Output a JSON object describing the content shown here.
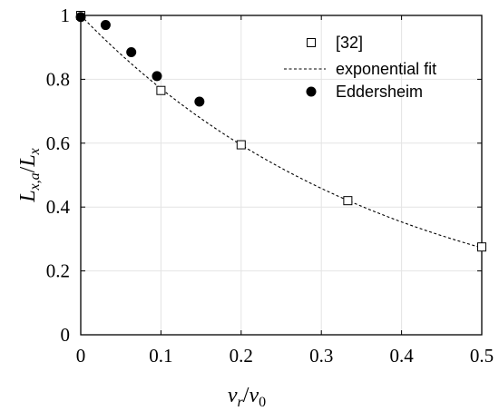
{
  "chart_data": {
    "type": "scatter",
    "xlabel": "v_r / v_0",
    "ylabel": "L_{x,a} / L_x",
    "xlim": [
      0,
      0.5
    ],
    "ylim": [
      0,
      1
    ],
    "x_ticks": [
      "0",
      "0.1",
      "0.2",
      "0.3",
      "0.4",
      "0.5"
    ],
    "y_ticks": [
      "0",
      "0.2",
      "0.4",
      "0.6",
      "0.8",
      "1"
    ],
    "grid": true,
    "legend": "top-right",
    "fit_rate": 2.6,
    "series": [
      {
        "name": "[32]",
        "marker": "open-square",
        "x": [
          0,
          0.1,
          0.2,
          0.333,
          0.5
        ],
        "y": [
          1.0,
          0.765,
          0.595,
          0.42,
          0.275
        ]
      },
      {
        "name": "exponential fit",
        "marker": "dashed-line"
      },
      {
        "name": "Eddersheim",
        "marker": "filled-circle",
        "x": [
          0,
          0.031,
          0.063,
          0.095,
          0.148
        ],
        "y": [
          0.995,
          0.97,
          0.885,
          0.81,
          0.73
        ]
      }
    ]
  }
}
